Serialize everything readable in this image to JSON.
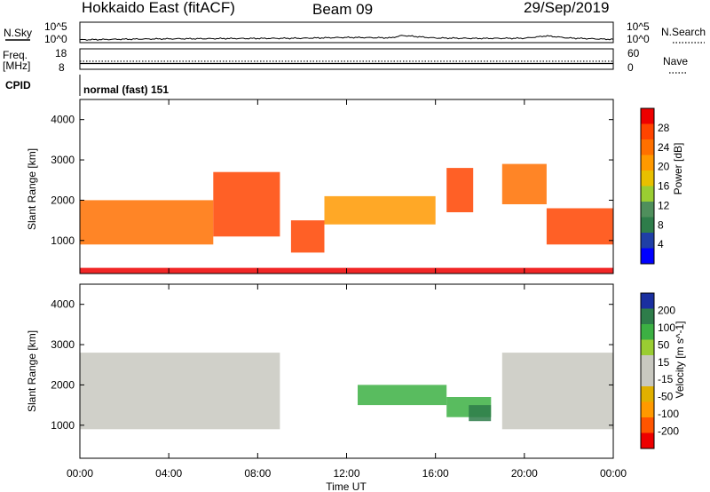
{
  "header": {
    "title": "Hokkaido East (fitACF)",
    "beam": "Beam 09",
    "date": "29/Sep/2019"
  },
  "top_panels": {
    "nsky_label": "N.Sky",
    "nsky_ticks": [
      "10^5",
      "10^0"
    ],
    "nsearch_label": "N.Search",
    "freq_label": "Freq.",
    "freq_unit": "[MHz]",
    "freq_ticks": [
      "18",
      "8"
    ],
    "nave_ticks": [
      "60",
      "0"
    ],
    "nave_label": "Nave",
    "cpid_label": "CPID",
    "cpid_value": "normal (fast) 151"
  },
  "colors": {
    "power_scale": [
      "#0000ff",
      "#1f3fa6",
      "#2e7d4a",
      "#4f8f5c",
      "#9acd32",
      "#e8c000",
      "#ff9900",
      "#ff7000",
      "#ff4400",
      "#ee0000"
    ],
    "velocity_scale": [
      "#ee0000",
      "#ff5500",
      "#ff9900",
      "#e0b000",
      "#c8c8c0",
      "#c8c8c0",
      "#9acd32",
      "#3cb043",
      "#2e7d4a",
      "#1a2fa0"
    ]
  },
  "chart_data": [
    {
      "type": "line",
      "title": "N.Sky / N.Search",
      "x": [
        "00:00",
        "02:00",
        "04:00",
        "06:00",
        "08:00",
        "10:00",
        "12:00",
        "14:00",
        "14:30",
        "16:00",
        "18:00",
        "20:00",
        "21:00",
        "22:00",
        "24:00"
      ],
      "series": [
        {
          "name": "N.Sky",
          "values": [
            1,
            1.3,
            1.5,
            1.6,
            1.7,
            1.8,
            2.2,
            2.0,
            3.2,
            1.9,
            1.7,
            1.8,
            3.0,
            1.9,
            1.2
          ]
        }
      ],
      "yticks": [
        "10^0",
        "10^5"
      ]
    },
    {
      "type": "line",
      "title": "Freq. / Nave",
      "x": [
        "00:00",
        "24:00"
      ],
      "series": [
        {
          "name": "Freq.",
          "values": [
            10.5,
            10.5
          ]
        },
        {
          "name": "Nave",
          "values": [
            22,
            22
          ]
        }
      ],
      "ylim_left": [
        8,
        18
      ],
      "ylim_right": [
        0,
        60
      ]
    },
    {
      "type": "heatmap",
      "ylabel": "Slant Range [km]",
      "colorbar_label": "Power [dB]",
      "colorbar_ticks": [
        4,
        8,
        12,
        16,
        20,
        24,
        28
      ],
      "ylim": [
        180,
        4500
      ],
      "yticks": [
        1000,
        2000,
        3000,
        4000
      ],
      "xticks": [
        "00:00",
        "04:00",
        "08:00",
        "12:00",
        "16:00",
        "20:00",
        "00:00"
      ],
      "regions": [
        {
          "t0": 0,
          "t1": 6,
          "r0": 900,
          "r1": 2000,
          "level": 22
        },
        {
          "t0": 6,
          "t1": 9,
          "r0": 1100,
          "r1": 2700,
          "level": 26
        },
        {
          "t0": 9.5,
          "t1": 11,
          "r0": 700,
          "r1": 1500,
          "level": 26
        },
        {
          "t0": 11,
          "t1": 16,
          "r0": 1400,
          "r1": 2100,
          "level": 18
        },
        {
          "t0": 16.5,
          "t1": 17.7,
          "r0": 1700,
          "r1": 2800,
          "level": 25
        },
        {
          "t0": 19,
          "t1": 21,
          "r0": 1900,
          "r1": 2900,
          "level": 23
        },
        {
          "t0": 21,
          "t1": 24,
          "r0": 900,
          "r1": 1800,
          "level": 24
        },
        {
          "t0": 0,
          "t1": 24,
          "r0": 180,
          "r1": 320,
          "level": 28
        }
      ]
    },
    {
      "type": "heatmap",
      "xlabel": "Time UT",
      "ylabel": "Slant Range [km]",
      "colorbar_label": "Velocity [m s^-1]",
      "colorbar_ticks": [
        -200,
        -100,
        -50,
        -15,
        15,
        50,
        100,
        200
      ],
      "ylim": [
        180,
        4500
      ],
      "yticks": [
        1000,
        2000,
        3000,
        4000
      ],
      "xticks": [
        "00:00",
        "04:00",
        "08:00",
        "12:00",
        "16:00",
        "20:00",
        "00:00"
      ],
      "regions": [
        {
          "t0": 0,
          "t1": 9,
          "r0": 900,
          "r1": 2800,
          "level": 0
        },
        {
          "t0": 12.5,
          "t1": 16.5,
          "r0": 1500,
          "r1": 2000,
          "level": 40
        },
        {
          "t0": 16.5,
          "t1": 18.5,
          "r0": 1200,
          "r1": 1700,
          "level": 40
        },
        {
          "t0": 17.5,
          "t1": 18.5,
          "r0": 1100,
          "r1": 1500,
          "level": 100
        },
        {
          "t0": 19,
          "t1": 24,
          "r0": 900,
          "r1": 2800,
          "level": 0
        }
      ]
    }
  ]
}
